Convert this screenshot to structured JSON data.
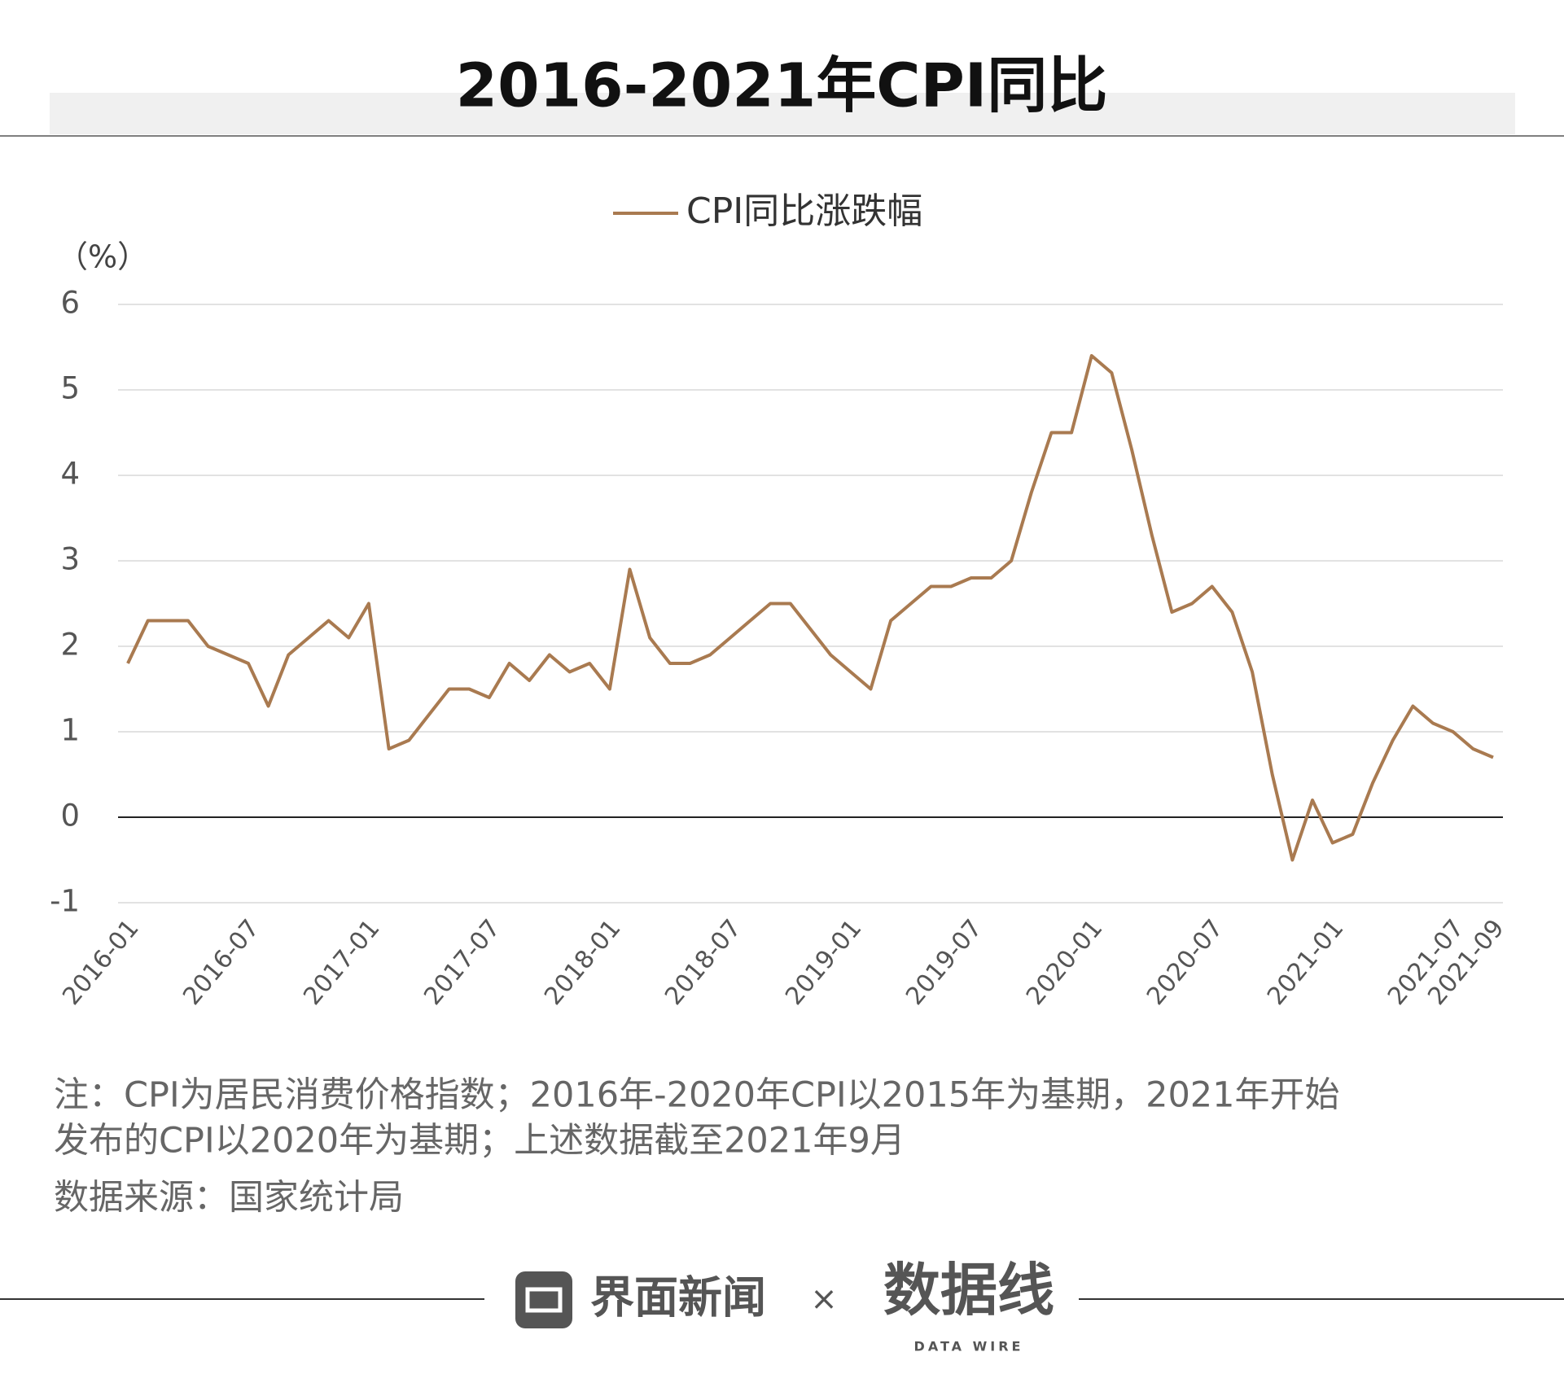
{
  "chart_data": {
    "type": "line",
    "title": "2016-2021年CPI同比",
    "y_unit_label": "（%）",
    "categories": [
      "2016-01",
      null,
      null,
      null,
      null,
      null,
      "2016-07",
      null,
      null,
      null,
      null,
      null,
      "2017-01",
      null,
      null,
      null,
      null,
      null,
      "2017-07",
      null,
      null,
      null,
      null,
      null,
      "2018-01",
      null,
      null,
      null,
      null,
      null,
      "2018-07",
      null,
      null,
      null,
      null,
      null,
      "2019-01",
      null,
      null,
      null,
      null,
      null,
      "2019-07",
      null,
      null,
      null,
      null,
      null,
      "2020-01",
      null,
      null,
      null,
      null,
      null,
      "2020-07",
      null,
      null,
      null,
      null,
      null,
      "2021-01",
      null,
      null,
      null,
      null,
      null,
      "2021-07",
      null,
      "2021-09"
    ],
    "series": [
      {
        "name": "CPI同比涨跌幅",
        "color": "#a97a50",
        "values": [
          1.8,
          2.3,
          2.3,
          2.3,
          2.0,
          1.9,
          1.8,
          1.3,
          1.9,
          2.1,
          2.3,
          2.1,
          2.5,
          0.8,
          0.9,
          1.2,
          1.5,
          1.5,
          1.4,
          1.8,
          1.6,
          1.9,
          1.7,
          1.8,
          1.5,
          2.9,
          2.1,
          1.8,
          1.8,
          1.9,
          2.1,
          2.3,
          2.5,
          2.5,
          2.2,
          1.9,
          1.7,
          1.5,
          2.3,
          2.5,
          2.7,
          2.7,
          2.8,
          2.8,
          3.0,
          3.8,
          4.5,
          4.5,
          5.4,
          5.2,
          4.3,
          3.3,
          2.4,
          2.5,
          2.7,
          2.4,
          1.7,
          0.5,
          -0.5,
          0.2,
          -0.3,
          -0.2,
          0.4,
          0.9,
          1.3,
          1.1,
          1.0,
          0.8,
          0.7
        ]
      }
    ],
    "ylim": [
      -1,
      6
    ],
    "yticks": [
      -1,
      0,
      1,
      2,
      3,
      4,
      5,
      6
    ],
    "grid": true,
    "legend": "top",
    "notes": [
      "注：CPI为居民消费价格指数；2016年-2020年CPI以2015年为基期，2021年开始",
      "发布的CPI以2020年为基期；上述数据截至2021年9月"
    ],
    "source": "数据来源：国家统计局"
  },
  "footer": {
    "brand": "界面新闻",
    "separator": "×",
    "partner": "数据线",
    "partner_sub": "DATA WIRE"
  }
}
